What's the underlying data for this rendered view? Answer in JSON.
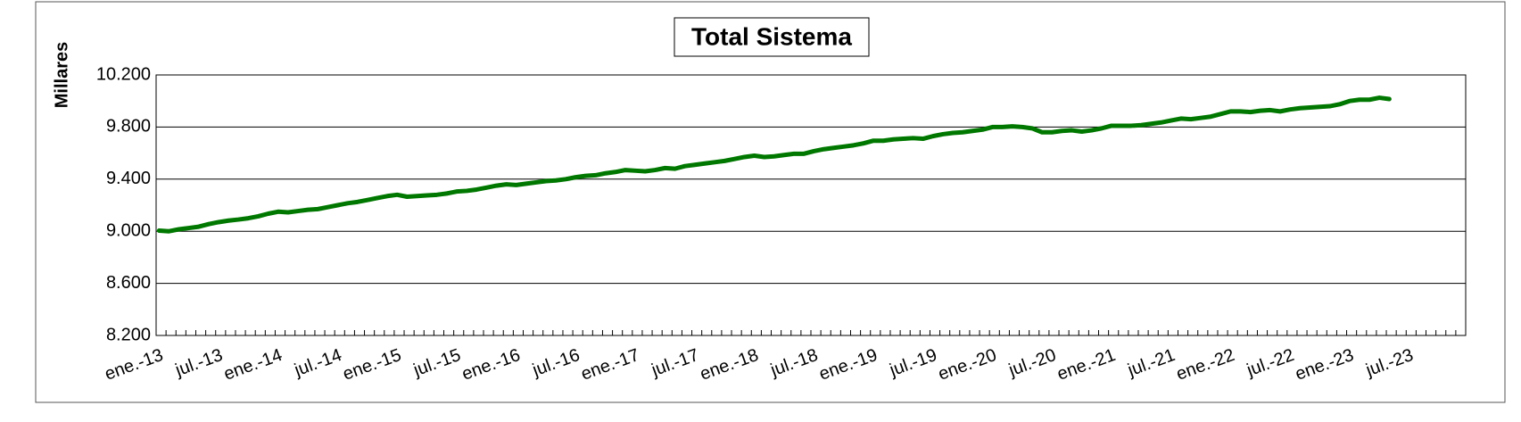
{
  "chart_data": {
    "type": "line",
    "title": "Total Sistema",
    "y_label": "Millares",
    "categories": [
      "ene.-13",
      null,
      null,
      null,
      null,
      null,
      "jul.-13",
      null,
      null,
      null,
      null,
      null,
      "ene.-14",
      null,
      null,
      null,
      null,
      null,
      "jul.-14",
      null,
      null,
      null,
      null,
      null,
      "ene.-15",
      null,
      null,
      null,
      null,
      null,
      "jul.-15",
      null,
      null,
      null,
      null,
      null,
      "ene.-16",
      null,
      null,
      null,
      null,
      null,
      "jul.-16",
      null,
      null,
      null,
      null,
      null,
      "ene.-17",
      null,
      null,
      null,
      null,
      null,
      "jul.-17",
      null,
      null,
      null,
      null,
      null,
      "ene.-18",
      null,
      null,
      null,
      null,
      null,
      "jul.-18",
      null,
      null,
      null,
      null,
      null,
      "ene.-19",
      null,
      null,
      null,
      null,
      null,
      "jul.-19",
      null,
      null,
      null,
      null,
      null,
      "ene.-20",
      null,
      null,
      null,
      null,
      null,
      "jul.-20",
      null,
      null,
      null,
      null,
      null,
      "ene.-21",
      null,
      null,
      null,
      null,
      null,
      "jul.-21",
      null,
      null,
      null,
      null,
      null,
      "ene.-22",
      null,
      null,
      null,
      null,
      null,
      "jul.-22",
      null,
      null,
      null,
      null,
      null,
      "ene.-23",
      null,
      null,
      null,
      null,
      null,
      "jul.-23",
      null,
      null,
      null,
      null,
      null
    ],
    "series": [
      {
        "color": "#007800",
        "values": [
          9005,
          9000,
          9015,
          9025,
          9035,
          9055,
          9070,
          9082,
          9090,
          9100,
          9115,
          9135,
          9150,
          9145,
          9155,
          9165,
          9170,
          9185,
          9200,
          9215,
          9225,
          9240,
          9255,
          9270,
          9280,
          9265,
          9270,
          9275,
          9280,
          9290,
          9305,
          9310,
          9320,
          9335,
          9350,
          9360,
          9355,
          9365,
          9375,
          9385,
          9390,
          9400,
          9415,
          9425,
          9430,
          9445,
          9455,
          9470,
          9465,
          9460,
          9470,
          9485,
          9480,
          9500,
          9510,
          9520,
          9530,
          9540,
          9555,
          9570,
          9580,
          9570,
          9575,
          9585,
          9595,
          9595,
          9615,
          9630,
          9640,
          9650,
          9660,
          9675,
          9695,
          9695,
          9705,
          9710,
          9715,
          9710,
          9730,
          9745,
          9755,
          9760,
          9770,
          9780,
          9800,
          9800,
          9805,
          9800,
          9790,
          9760,
          9760,
          9770,
          9775,
          9765,
          9775,
          9790,
          9810,
          9810,
          9810,
          9815,
          9825,
          9835,
          9850,
          9865,
          9860,
          9870,
          9880,
          9900,
          9920,
          9920,
          9915,
          9925,
          9930,
          9920,
          9935,
          9945,
          9950,
          9955,
          9960,
          9975,
          10000,
          10010,
          10010,
          10025,
          10015,
          null,
          null,
          null,
          null,
          null,
          null,
          null
        ]
      }
    ],
    "ylim": [
      8200,
      10200
    ],
    "yticks": [
      {
        "value": 8200,
        "label": "8.200"
      },
      {
        "value": 8600,
        "label": "8.600"
      },
      {
        "value": 9000,
        "label": "9.000"
      },
      {
        "value": 9400,
        "label": "9.400"
      },
      {
        "value": 9800,
        "label": "9.800"
      },
      {
        "value": 10200,
        "label": "10.200"
      }
    ],
    "grid": true
  }
}
